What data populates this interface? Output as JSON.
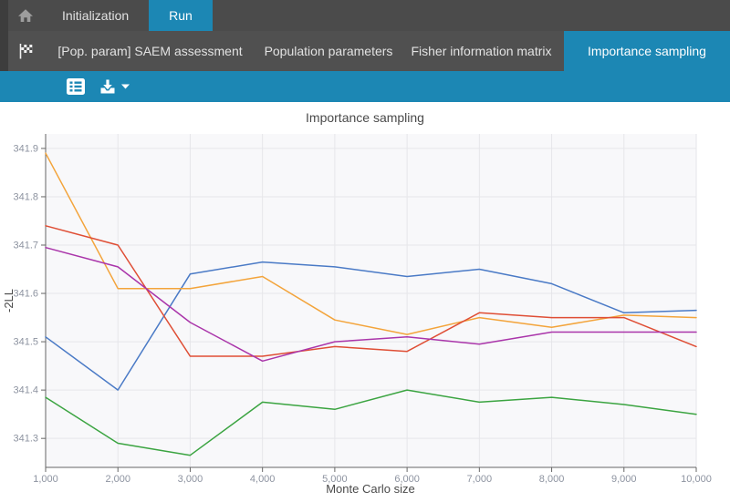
{
  "accent": "#1c87b4",
  "header": {
    "home_icon": "home-icon",
    "tabs": [
      {
        "label": "Initialization",
        "active": false
      },
      {
        "label": "Run",
        "active": true
      }
    ]
  },
  "subnav": {
    "flag_icon": "checkered-flag-icon",
    "tabs": [
      {
        "label": "[Pop. param] SAEM assessment",
        "active": false
      },
      {
        "label": "Population parameters",
        "active": false
      },
      {
        "label": "Fisher information matrix",
        "active": false
      },
      {
        "label": "Importance sampling",
        "active": true
      }
    ]
  },
  "toolbar": {
    "icons": [
      "legend-list-icon",
      "download-icon",
      "caret-down-icon"
    ]
  },
  "chart_data": {
    "type": "line",
    "title": "Importance sampling",
    "xlabel": "Monte Carlo size",
    "ylabel": "-2LL",
    "x": [
      1000,
      2000,
      3000,
      4000,
      5000,
      6000,
      7000,
      8000,
      9000,
      10000
    ],
    "x_tick_labels": [
      "1,000",
      "2,000",
      "3,000",
      "4,000",
      "5,000",
      "6,000",
      "7,000",
      "8,000",
      "9,000",
      "10,000"
    ],
    "y_ticks": [
      341.3,
      341.4,
      341.5,
      341.6,
      341.7,
      341.8,
      341.9
    ],
    "xlim": [
      1000,
      10000
    ],
    "ylim": [
      341.24,
      341.93
    ],
    "grid": true,
    "legend_position": "none",
    "colors": {
      "grid": "#e6e6ea",
      "plot_bg": "#f8f8fa",
      "axis": "#666666",
      "tick_label": "#8d93a0",
      "text": "#4a4a4a"
    },
    "series": [
      {
        "name": "run-blue",
        "color": "#4a7ac6",
        "values": [
          341.51,
          341.4,
          341.64,
          341.665,
          341.655,
          341.635,
          341.65,
          341.62,
          341.56,
          341.565
        ]
      },
      {
        "name": "run-orange",
        "color": "#f3a43b",
        "values": [
          341.89,
          341.61,
          341.61,
          341.635,
          341.545,
          341.515,
          341.55,
          341.53,
          341.555,
          341.55
        ]
      },
      {
        "name": "run-red",
        "color": "#df4e35",
        "values": [
          341.74,
          341.7,
          341.47,
          341.47,
          341.49,
          341.48,
          341.56,
          341.55,
          341.55,
          341.49
        ]
      },
      {
        "name": "run-magenta",
        "color": "#aa35aa",
        "values": [
          341.695,
          341.655,
          341.54,
          341.46,
          341.5,
          341.51,
          341.495,
          341.52,
          341.52,
          341.52
        ]
      },
      {
        "name": "run-green",
        "color": "#3ba441",
        "values": [
          341.385,
          341.29,
          341.265,
          341.375,
          341.36,
          341.4,
          341.375,
          341.385,
          341.37,
          341.35
        ]
      }
    ]
  }
}
